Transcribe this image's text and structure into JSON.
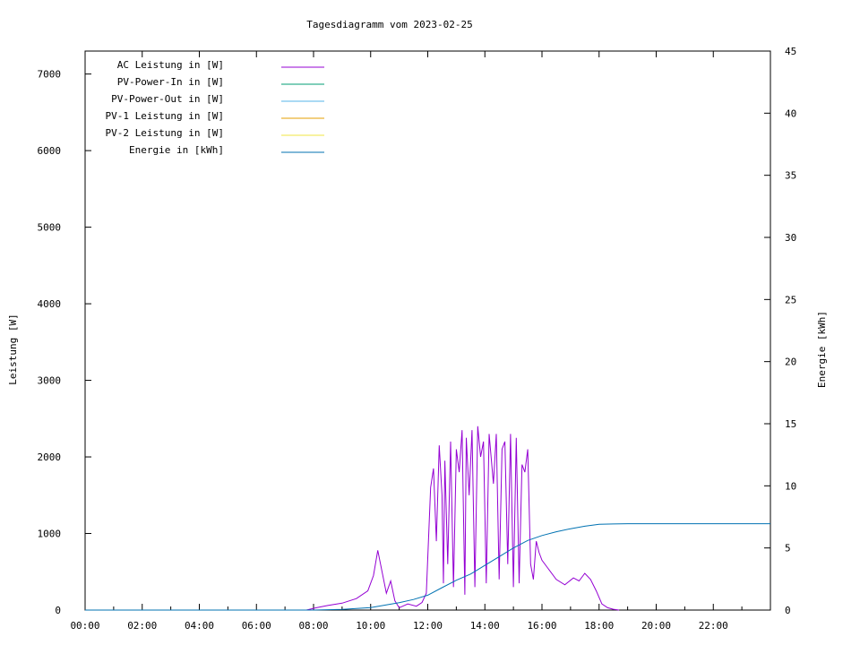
{
  "chart_data": {
    "type": "line",
    "title": "Tagesdiagramm vom 2023-02-25",
    "ylabel": "Leistung [W]",
    "y2label": "Energie [kWh]",
    "xlim": [
      0,
      24
    ],
    "ylim": [
      0,
      7300
    ],
    "y2lim": [
      0,
      45
    ],
    "x_ticks": [
      "00:00",
      "02:00",
      "04:00",
      "06:00",
      "08:00",
      "10:00",
      "12:00",
      "14:00",
      "16:00",
      "18:00",
      "20:00",
      "22:00"
    ],
    "y_ticks": [
      "0",
      "1000",
      "2000",
      "3000",
      "4000",
      "5000",
      "6000",
      "7000"
    ],
    "y2_ticks": [
      "0",
      "5",
      "10",
      "15",
      "20",
      "25",
      "30",
      "35",
      "40",
      "45"
    ],
    "legend_position": "top-left",
    "series": [
      {
        "name": "AC Leistung in [W]",
        "axis": "left",
        "color": "#9400d3",
        "x": [
          7.75,
          8.1,
          8.5,
          9.0,
          9.5,
          9.9,
          10.1,
          10.25,
          10.4,
          10.55,
          10.7,
          10.85,
          11.0,
          11.3,
          11.6,
          11.8,
          11.95,
          12.1,
          12.2,
          12.3,
          12.4,
          12.5,
          12.55,
          12.6,
          12.7,
          12.8,
          12.9,
          13.0,
          13.1,
          13.2,
          13.3,
          13.35,
          13.45,
          13.55,
          13.65,
          13.75,
          13.85,
          13.95,
          14.05,
          14.15,
          14.3,
          14.4,
          14.5,
          14.6,
          14.7,
          14.8,
          14.9,
          15.0,
          15.1,
          15.2,
          15.3,
          15.4,
          15.5,
          15.6,
          15.7,
          15.8,
          15.9,
          16.0,
          16.2,
          16.5,
          16.8,
          17.1,
          17.3,
          17.5,
          17.7,
          17.9,
          18.1,
          18.3,
          18.5,
          18.7
        ],
        "y": [
          0,
          30,
          60,
          90,
          150,
          250,
          450,
          780,
          500,
          220,
          380,
          120,
          30,
          80,
          50,
          100,
          220,
          1600,
          1850,
          900,
          2150,
          1500,
          350,
          1950,
          600,
          2200,
          300,
          2100,
          1800,
          2350,
          200,
          2250,
          1500,
          2350,
          300,
          2400,
          2000,
          2200,
          350,
          2300,
          1650,
          2300,
          400,
          2100,
          2200,
          600,
          2300,
          300,
          2250,
          350,
          1900,
          1800,
          2100,
          600,
          400,
          900,
          750,
          650,
          550,
          400,
          330,
          420,
          380,
          480,
          400,
          250,
          80,
          30,
          10,
          0
        ]
      },
      {
        "name": "PV-Power-In in [W]",
        "axis": "left",
        "color": "#009e73",
        "x": [],
        "y": []
      },
      {
        "name": "PV-Power-Out in [W]",
        "axis": "left",
        "color": "#56b4e9",
        "x": [],
        "y": []
      },
      {
        "name": "PV-1 Leistung in [W]",
        "axis": "left",
        "color": "#e69f00",
        "x": [],
        "y": []
      },
      {
        "name": "PV-2 Leistung in [W]",
        "axis": "left",
        "color": "#f0e442",
        "x": [],
        "y": []
      },
      {
        "name": "Energie in [kWh]",
        "axis": "right",
        "color": "#0072b2",
        "x": [
          0,
          8.0,
          9.0,
          10.0,
          10.5,
          11.0,
          11.5,
          12.0,
          12.5,
          13.0,
          13.5,
          14.0,
          14.5,
          15.0,
          15.5,
          16.0,
          16.5,
          17.0,
          17.5,
          18.0,
          18.5,
          19.0,
          20.0,
          22.0,
          24.0
        ],
        "y": [
          0,
          0,
          0.05,
          0.2,
          0.4,
          0.6,
          0.85,
          1.2,
          1.8,
          2.4,
          2.9,
          3.6,
          4.3,
          5.0,
          5.6,
          6.0,
          6.3,
          6.55,
          6.75,
          6.9,
          6.93,
          6.95,
          6.95,
          6.95,
          6.95
        ]
      }
    ]
  }
}
